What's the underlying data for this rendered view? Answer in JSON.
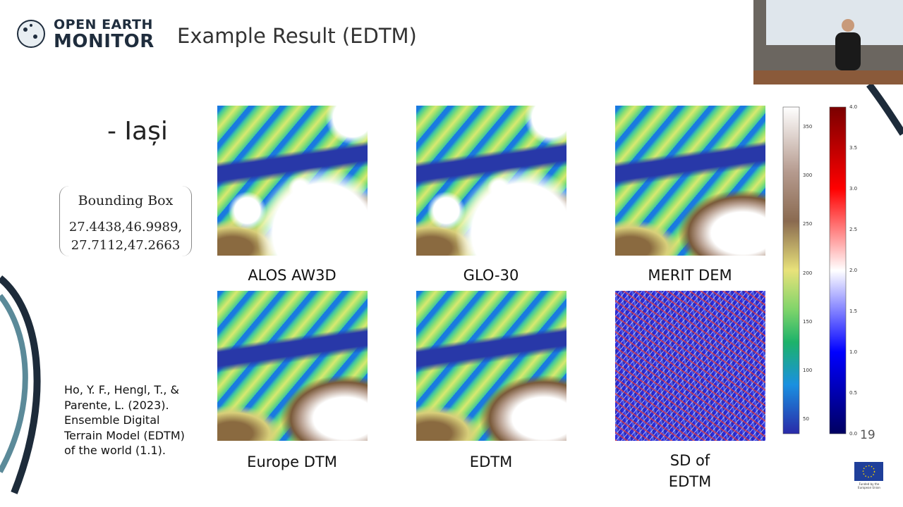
{
  "header": {
    "logo_line1": "OPEN EARTH",
    "logo_line2": "MONITOR",
    "title": "Example Result (EDTM)"
  },
  "location": "- Iași",
  "bounding_box": {
    "label": "Bounding Box",
    "line1": "27.4438,46.9989,",
    "line2": "27.7112,47.2663"
  },
  "maps": [
    {
      "label": "ALOS AW3D"
    },
    {
      "label": "GLO-30"
    },
    {
      "label": "MERIT DEM"
    },
    {
      "label": "Europe DTM"
    },
    {
      "label": "EDTM"
    },
    {
      "label": "SD of EDTM"
    }
  ],
  "colorbar_elevation": {
    "ticks": [
      "350",
      "300",
      "250",
      "200",
      "150",
      "100",
      "50"
    ]
  },
  "colorbar_sd": {
    "ticks": [
      "4.0",
      "3.5",
      "3.0",
      "2.5",
      "2.0",
      "1.5",
      "1.0",
      "0.5",
      "0.0"
    ]
  },
  "citation": "Ho, Y. F., Hengl, T., & Parente, L. (2023). Ensemble Digital Terrain Model (EDTM) of the world (1.1).",
  "page_number": "19",
  "eu_emblem": "Funded by the European Union"
}
